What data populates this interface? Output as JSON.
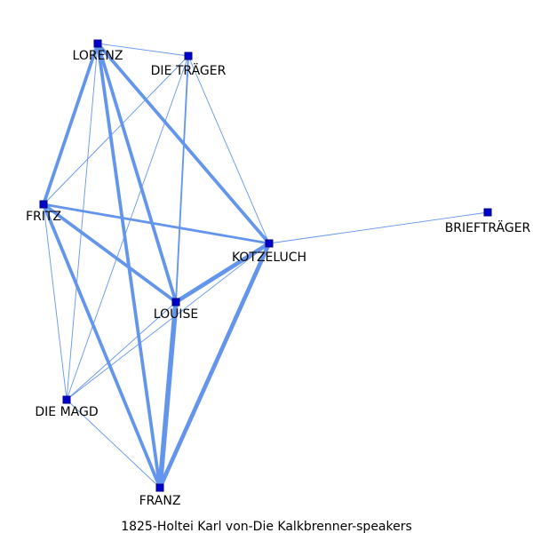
{
  "graph": {
    "caption": "1825-Holtei  Karl  von-Die  Kalkbrenner-speakers",
    "colors": {
      "edge": "#6495ed",
      "node_fill": "#0000cd",
      "node_stroke": "#000080",
      "label": "#000000"
    },
    "nodes": [
      {
        "id": "LORENZ",
        "label": "LORENZ"
      },
      {
        "id": "DIE TRÄGER",
        "label": "DIE TRÄGER"
      },
      {
        "id": "FRITZ",
        "label": "FRITZ"
      },
      {
        "id": "BRIEFTRÄGER",
        "label": "BRIEFTRÄGER"
      },
      {
        "id": "KOTZELUCH",
        "label": "KOTZELUCH"
      },
      {
        "id": "LOUISE",
        "label": "LOUISE"
      },
      {
        "id": "DIE MAGD",
        "label": "DIE MAGD"
      },
      {
        "id": "FRANZ",
        "label": "FRANZ"
      }
    ],
    "edges": [
      {
        "source": "LORENZ",
        "target": "DIE TRÄGER",
        "weight": 1
      },
      {
        "source": "LORENZ",
        "target": "FRITZ",
        "weight": 4
      },
      {
        "source": "LORENZ",
        "target": "KOTZELUCH",
        "weight": 4
      },
      {
        "source": "LORENZ",
        "target": "LOUISE",
        "weight": 4
      },
      {
        "source": "LORENZ",
        "target": "FRANZ",
        "weight": 4
      },
      {
        "source": "LORENZ",
        "target": "DIE MAGD",
        "weight": 1
      },
      {
        "source": "DIE TRÄGER",
        "target": "FRITZ",
        "weight": 1
      },
      {
        "source": "DIE TRÄGER",
        "target": "KOTZELUCH",
        "weight": 1
      },
      {
        "source": "DIE TRÄGER",
        "target": "LOUISE",
        "weight": 2
      },
      {
        "source": "DIE TRÄGER",
        "target": "DIE MAGD",
        "weight": 1
      },
      {
        "source": "FRITZ",
        "target": "KOTZELUCH",
        "weight": 3
      },
      {
        "source": "FRITZ",
        "target": "LOUISE",
        "weight": 4
      },
      {
        "source": "FRITZ",
        "target": "DIE MAGD",
        "weight": 1
      },
      {
        "source": "FRITZ",
        "target": "FRANZ",
        "weight": 4
      },
      {
        "source": "KOTZELUCH",
        "target": "BRIEFTRÄGER",
        "weight": 1
      },
      {
        "source": "KOTZELUCH",
        "target": "LOUISE",
        "weight": 5
      },
      {
        "source": "KOTZELUCH",
        "target": "DIE MAGD",
        "weight": 1
      },
      {
        "source": "KOTZELUCH",
        "target": "FRANZ",
        "weight": 5
      },
      {
        "source": "LOUISE",
        "target": "FRANZ",
        "weight": 6
      },
      {
        "source": "LOUISE",
        "target": "DIE MAGD",
        "weight": 1
      },
      {
        "source": "DIE MAGD",
        "target": "FRANZ",
        "weight": 1
      }
    ]
  }
}
